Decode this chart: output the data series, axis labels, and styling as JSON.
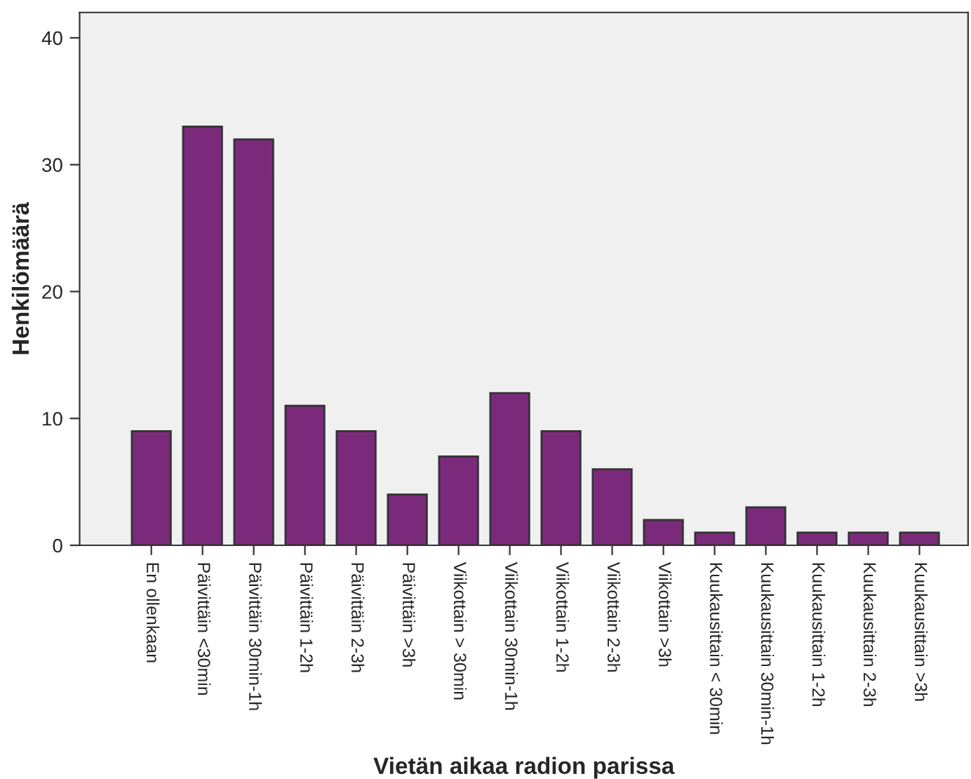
{
  "chart_data": {
    "type": "bar",
    "xlabel": "Vietän aikaa radion parissa",
    "ylabel": "Henkilömäärä",
    "categories": [
      "En ollenkaan",
      "Päivittäin <30min",
      "Päivittäin 30min-1h",
      "Päivittäin 1-2h",
      "Päivittäin 2-3h",
      "Päivittäin >3h",
      "Viikottain > 30min",
      "Viikottain 30min-1h",
      "Viikottain 1-2h",
      "Viikottain 2-3h",
      "Viikottain >3h",
      "Kuukausittain < 30min",
      "Kuukausittain 30min-1h",
      "Kuukausittain 1-2h",
      "Kuukausittain 2-3h",
      "Kuukausittain >3h"
    ],
    "values": [
      9,
      33,
      32,
      11,
      9,
      4,
      7,
      12,
      9,
      6,
      2,
      1,
      3,
      1,
      1,
      1
    ],
    "color": "#7b2a7b",
    "ylim": [
      0,
      42
    ],
    "yticks": [
      0,
      10,
      20,
      30,
      40
    ],
    "grid": false,
    "legend": false
  }
}
